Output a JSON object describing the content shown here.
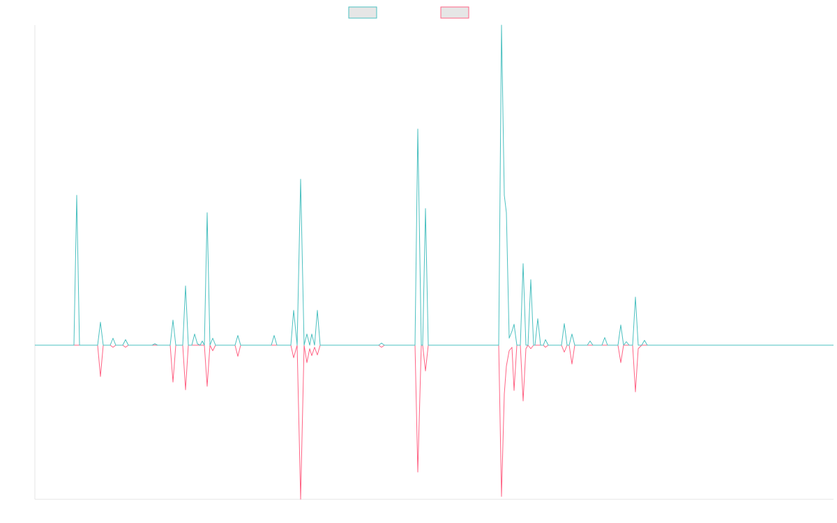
{
  "chart_data": {
    "type": "line",
    "x": [
      0,
      56,
      60,
      64,
      90,
      94,
      98,
      108,
      112,
      116,
      126,
      130,
      134,
      168,
      172,
      176,
      194,
      198,
      202,
      212,
      216,
      220,
      225,
      229,
      233,
      237,
      240,
      243,
      247,
      251,
      255,
      259,
      287,
      291,
      295,
      339,
      343,
      347,
      367,
      371,
      376,
      381,
      386,
      390,
      394,
      397,
      401,
      405,
      409,
      493,
      497,
      501,
      545,
      549,
      554,
      556,
      560,
      564,
      665,
      669,
      673,
      676,
      680,
      684,
      687,
      691,
      696,
      700,
      704,
      707,
      711,
      715,
      717,
      721,
      725,
      729,
      732,
      736,
      755,
      759,
      763,
      766,
      770,
      774,
      792,
      796,
      800,
      813,
      817,
      821,
      836,
      840,
      844,
      848,
      852,
      857,
      861,
      865,
      870,
      874,
      878,
      1145
    ],
    "series": [
      {
        "color": "#4bc0c0",
        "values": [
          0,
          0,
          215,
          0,
          0,
          33,
          0,
          0,
          10,
          0,
          0,
          8,
          0,
          0,
          2,
          0,
          0,
          36,
          0,
          0,
          85,
          0,
          0,
          16,
          2,
          0,
          6,
          0,
          190,
          0,
          10,
          0,
          0,
          14,
          0,
          0,
          14,
          0,
          0,
          50,
          0,
          238,
          0,
          16,
          0,
          16,
          0,
          50,
          0,
          0,
          3,
          0,
          0,
          310,
          0,
          0,
          196,
          0,
          0,
          459,
          215,
          190,
          10,
          20,
          30,
          0,
          0,
          117,
          0,
          0,
          94,
          0,
          0,
          38,
          0,
          0,
          8,
          0,
          0,
          31,
          0,
          0,
          16,
          0,
          0,
          6,
          0,
          0,
          11,
          0,
          0,
          29,
          0,
          5,
          0,
          0,
          69,
          0,
          0,
          7,
          0,
          0
        ]
      },
      {
        "color": "#ff6384",
        "values": [
          0,
          0,
          0,
          0,
          0,
          -45,
          0,
          0,
          -3,
          0,
          0,
          -3,
          0,
          0,
          0,
          0,
          0,
          -53,
          0,
          0,
          -64,
          0,
          0,
          0,
          0,
          0,
          0,
          0,
          -59,
          0,
          -8,
          0,
          0,
          -16,
          0,
          0,
          0,
          0,
          0,
          -18,
          0,
          -221,
          0,
          -25,
          -5,
          -15,
          -3,
          -14,
          0,
          0,
          -3,
          0,
          0,
          -182,
          0,
          0,
          -37,
          0,
          0,
          -217,
          -70,
          -30,
          -8,
          -3,
          -65,
          0,
          0,
          -80,
          -5,
          0,
          -5,
          0,
          0,
          0,
          0,
          0,
          -3,
          0,
          0,
          -10,
          0,
          0,
          -27,
          0,
          0,
          0,
          0,
          0,
          0,
          0,
          0,
          -25,
          0,
          0,
          0,
          0,
          -67,
          -5,
          0,
          0,
          0,
          0
        ]
      }
    ],
    "xlim": [
      0,
      1145
    ],
    "ylim": [
      -221,
      459
    ],
    "legend": "top"
  }
}
